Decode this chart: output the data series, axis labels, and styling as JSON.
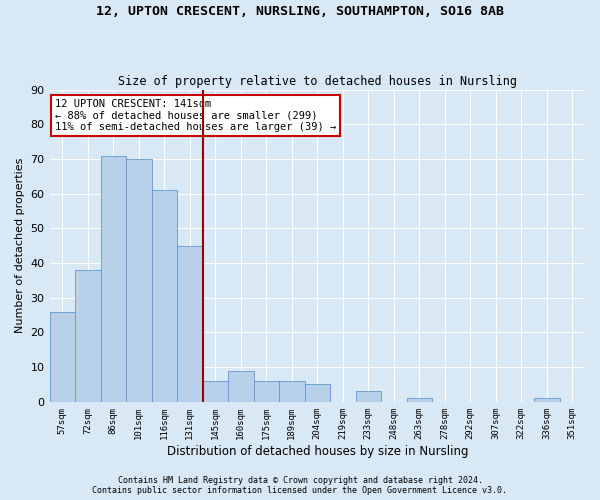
{
  "title1": "12, UPTON CRESCENT, NURSLING, SOUTHAMPTON, SO16 8AB",
  "title2": "Size of property relative to detached houses in Nursling",
  "xlabel": "Distribution of detached houses by size in Nursling",
  "ylabel": "Number of detached properties",
  "categories": [
    "57sqm",
    "72sqm",
    "86sqm",
    "101sqm",
    "116sqm",
    "131sqm",
    "145sqm",
    "160sqm",
    "175sqm",
    "189sqm",
    "204sqm",
    "219sqm",
    "233sqm",
    "248sqm",
    "263sqm",
    "278sqm",
    "292sqm",
    "307sqm",
    "322sqm",
    "336sqm",
    "351sqm"
  ],
  "values": [
    26,
    38,
    71,
    70,
    61,
    45,
    6,
    9,
    6,
    6,
    5,
    0,
    3,
    0,
    1,
    0,
    0,
    0,
    0,
    1,
    0
  ],
  "bar_color": "#b8d0ea",
  "bar_edge_color": "#6699cc",
  "bg_color": "#d8e8f4",
  "vline_x_index": 5.5,
  "vline_color": "#990000",
  "annotation_line1": "12 UPTON CRESCENT: 141sqm",
  "annotation_line2": "← 88% of detached houses are smaller (299)",
  "annotation_line3": "11% of semi-detached houses are larger (39) →",
  "annotation_box_color": "white",
  "annotation_box_edge_color": "#cc0000",
  "footer1": "Contains HM Land Registry data © Crown copyright and database right 2024.",
  "footer2": "Contains public sector information licensed under the Open Government Licence v3.0.",
  "ylim": [
    0,
    90
  ],
  "yticks": [
    0,
    10,
    20,
    30,
    40,
    50,
    60,
    70,
    80,
    90
  ]
}
